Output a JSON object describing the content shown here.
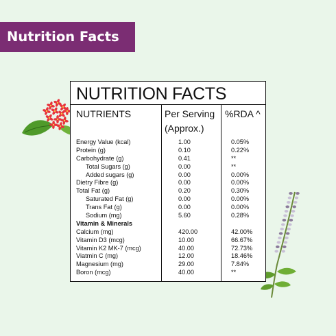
{
  "banner": {
    "label": "Nutrition Facts"
  },
  "panel": {
    "title": "NUTRITION FACTS",
    "headers": {
      "nutrients": "NUTRIENTS",
      "per_serving": "Per Serving",
      "approx": "(Approx.)",
      "rda": "%RDA ^"
    },
    "rows": [
      {
        "name": "Energy Value (kcal)",
        "value": "1.00",
        "rda": "0.05%",
        "indent": false,
        "bold": false
      },
      {
        "name": "Protein (g)",
        "value": "0.10",
        "rda": "0.22%",
        "indent": false,
        "bold": false
      },
      {
        "name": "Carbohydrate (g)",
        "value": "0.41",
        "rda": "**",
        "indent": false,
        "bold": false
      },
      {
        "name": "Total Sugars (g)",
        "value": "0.00",
        "rda": "**",
        "indent": true,
        "bold": false
      },
      {
        "name": "Added sugars (g)",
        "value": "0.00",
        "rda": "0.00%",
        "indent": true,
        "bold": false
      },
      {
        "name": "Dietry Fibre (g)",
        "value": "0.00",
        "rda": "0.00%",
        "indent": false,
        "bold": false
      },
      {
        "name": "Total Fat (g)",
        "value": "0.20",
        "rda": "0.30%",
        "indent": false,
        "bold": false
      },
      {
        "name": "Saturated Fat (g)",
        "value": "0.00",
        "rda": "0.00%",
        "indent": true,
        "bold": false
      },
      {
        "name": "Trans Fat (g)",
        "value": "0.00",
        "rda": "0.00%",
        "indent": true,
        "bold": false
      },
      {
        "name": "Sodium (mg)",
        "value": "5.60",
        "rda": "0.28%",
        "indent": true,
        "bold": false
      },
      {
        "name": "Vitamin & Minerals",
        "value": "",
        "rda": "",
        "indent": false,
        "bold": true
      },
      {
        "name": "Calcium (mg)",
        "value": "420.00",
        "rda": "42.00%",
        "indent": false,
        "bold": false
      },
      {
        "name": "Vitamin D3 (mcg)",
        "value": "10.00",
        "rda": "66.67%",
        "indent": false,
        "bold": false
      },
      {
        "name": "Vitamin K2 MK-7 (mcg)",
        "value": "40.00",
        "rda": "72.73%",
        "indent": false,
        "bold": false
      },
      {
        "name": "Viatmin C (mg)",
        "value": "12.00",
        "rda": "18.46%",
        "indent": false,
        "bold": false
      },
      {
        "name": "Magnesium (mg)",
        "value": "29.00",
        "rda": "7.84%",
        "indent": false,
        "bold": false
      },
      {
        "name": "Boron (mcg)",
        "value": "40.00",
        "rda": "**",
        "indent": false,
        "bold": false
      }
    ]
  },
  "decor": {
    "flower_icon": "ixora-flower-icon",
    "herb_icon": "tulsi-herb-icon",
    "colors": {
      "banner": "#7b2d73",
      "background": "#eaf6ea",
      "flower": "#e8323c",
      "leaf": "#5a9a2e"
    }
  }
}
